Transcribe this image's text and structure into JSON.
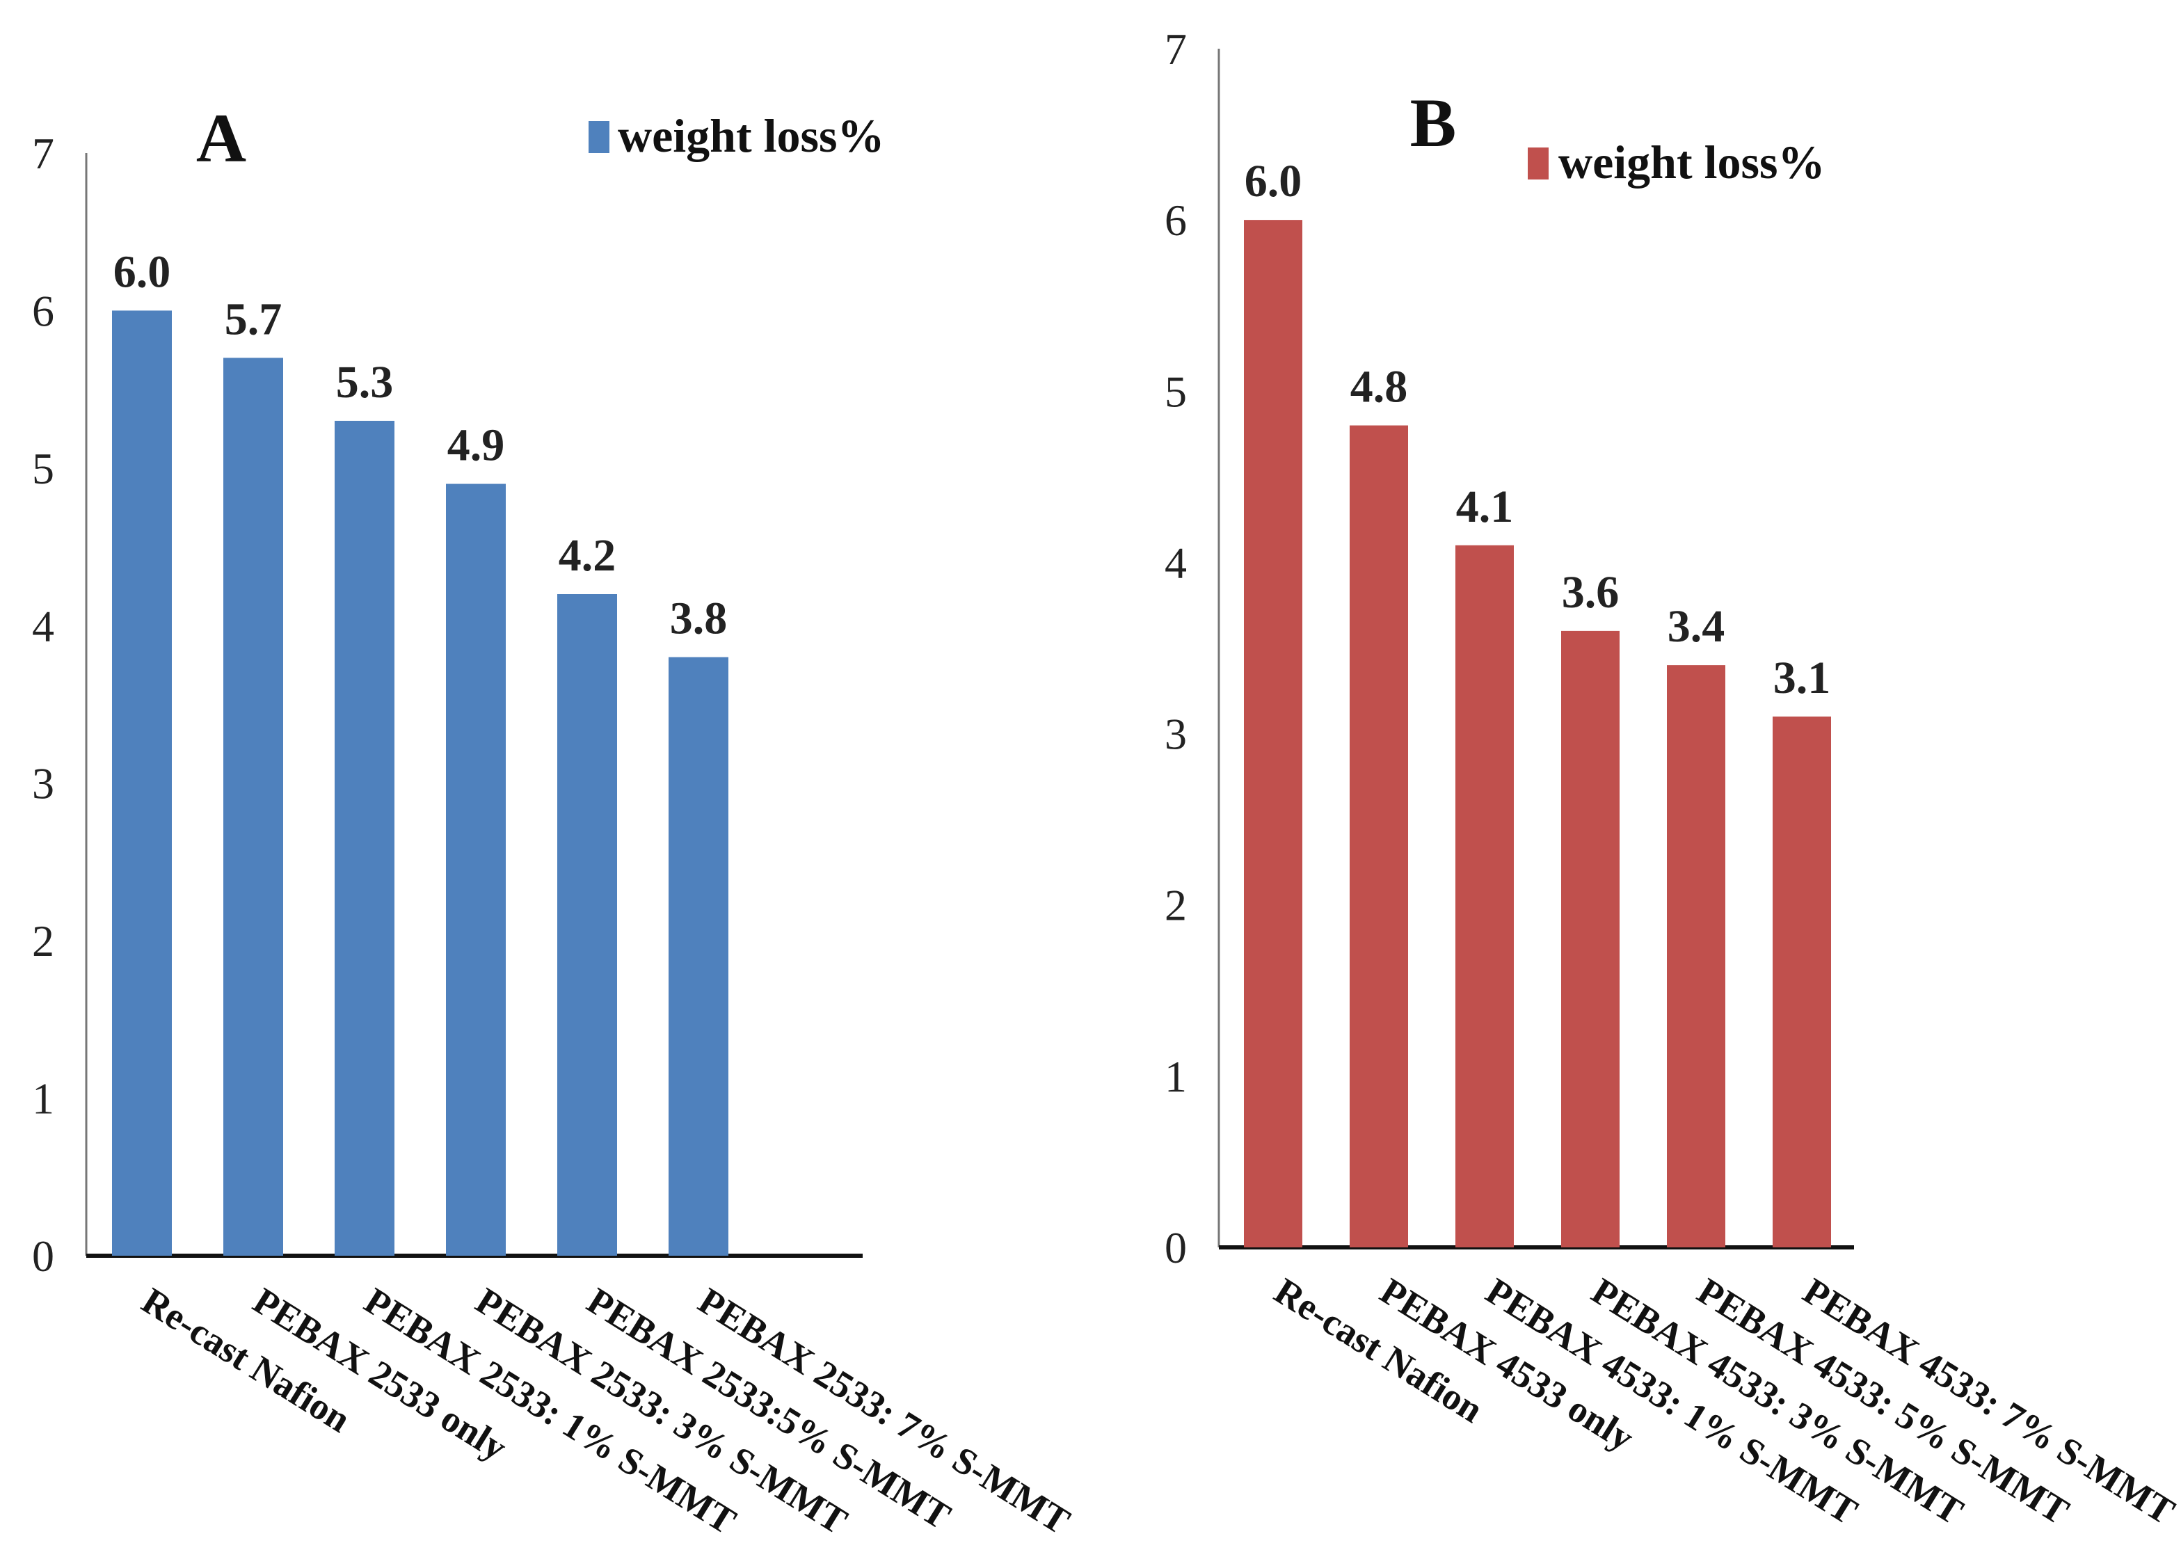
{
  "chart_data": [
    {
      "type": "bar",
      "panel": "A",
      "title": "A",
      "legend": "weight loss%",
      "color": "#4F81BD",
      "categories": [
        "Re-cast Nafion",
        "PEBAX 2533 only",
        "PEBAX 2533: 1% S-MMT",
        "PEBAX 2533: 3% S-MMT",
        "PEBAX 2533:5% S-MMT",
        "PEBAX 2533: 7% S-MMT"
      ],
      "values": [
        6.0,
        5.7,
        5.3,
        4.9,
        4.2,
        3.8
      ],
      "value_labels": [
        "6.0",
        "5.7",
        "5.3",
        "4.9",
        "4.2",
        "3.8"
      ],
      "yticks": [
        "0",
        "1",
        "2",
        "3",
        "4",
        "5",
        "6",
        "7"
      ],
      "ylim": [
        0,
        7
      ],
      "xlabel": "",
      "ylabel": "",
      "grid": false,
      "legend_position": "top-right"
    },
    {
      "type": "bar",
      "panel": "B",
      "title": "B",
      "legend": "weight loss%",
      "color": "#C0504D",
      "categories": [
        "Re-cast Nafion",
        "PEBAX 4533 only",
        "PEBAX 4533: 1% S-MMT",
        "PEBAX 4533: 3% S-MMT",
        "PEBAX 4533: 5% S-MMT",
        "PEBAX 4533: 7% S-MMT"
      ],
      "values": [
        6.0,
        4.8,
        4.1,
        3.6,
        3.4,
        3.1
      ],
      "value_labels": [
        "6.0",
        "4.8",
        "4.1",
        "3.6",
        "3.4",
        "3.1"
      ],
      "yticks": [
        "0",
        "1",
        "2",
        "3",
        "4",
        "5",
        "6",
        "7"
      ],
      "ylim": [
        0,
        7
      ],
      "xlabel": "",
      "ylabel": "",
      "grid": false,
      "legend_position": "top-center"
    }
  ]
}
